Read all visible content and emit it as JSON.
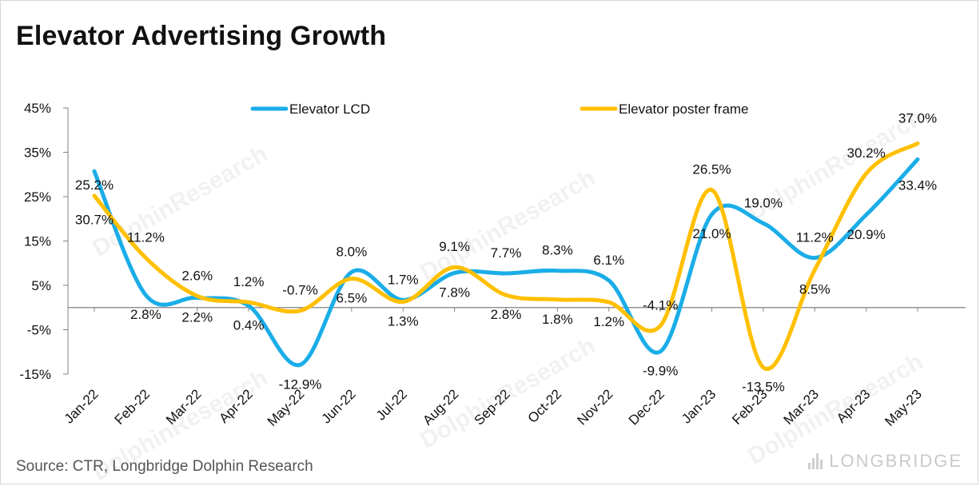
{
  "title": "Elevator Advertising Growth",
  "source": "Source: CTR, Longbridge Dolphin Research",
  "watermark": {
    "text": "DolphinResearch",
    "brand": "LONGBRIDGE"
  },
  "colors": {
    "lcd": "#1AADE8",
    "poster": "#FFC000",
    "axis": "#808080"
  },
  "chart_data": {
    "type": "line",
    "title": "Elevator Advertising Growth",
    "xlabel": "",
    "ylabel": "",
    "categories": [
      "Jan-22",
      "Feb-22",
      "Mar-22",
      "Apr-22",
      "May-22",
      "Jun-22",
      "Jul-22",
      "Aug-22",
      "Sep-22",
      "Oct-22",
      "Nov-22",
      "Dec-22",
      "Jan-23",
      "Feb-23",
      "Mar-23",
      "Apr-23",
      "May-23"
    ],
    "ylim": [
      -15,
      45
    ],
    "yticks": [
      45,
      35,
      25,
      15,
      5,
      -5,
      -15
    ],
    "ytick_labels": [
      "45%",
      "35%",
      "25%",
      "15%",
      "5%",
      "-5%",
      "-15%"
    ],
    "legend": "top",
    "grid": false,
    "series": [
      {
        "name": "Elevator LCD",
        "color": "#1AADE8",
        "values": [
          30.7,
          2.8,
          2.2,
          0.4,
          -12.9,
          8.0,
          1.7,
          7.8,
          7.7,
          8.3,
          6.1,
          -9.9,
          21.0,
          19.0,
          11.2,
          20.9,
          33.4
        ],
        "labels": [
          "30.7%",
          "2.8%",
          "2.2%",
          "0.4%",
          "-12.9%",
          "8.0%",
          "1.7%",
          "7.8%",
          "7.7%",
          "8.3%",
          "6.1%",
          "-9.9%",
          "21.0%",
          "19.0%",
          "11.2%",
          "20.9%",
          "33.4%"
        ]
      },
      {
        "name": "Elevator poster frame",
        "color": "#FFC000",
        "values": [
          25.2,
          11.2,
          2.6,
          1.2,
          -0.7,
          6.5,
          1.3,
          9.1,
          2.8,
          1.8,
          1.2,
          -4.1,
          26.5,
          -13.5,
          8.5,
          30.2,
          37.0
        ],
        "labels": [
          "25.2%",
          "11.2%",
          "2.6%",
          "1.2%",
          "-0.7%",
          "6.5%",
          "1.3%",
          "9.1%",
          "2.8%",
          "1.8%",
          "1.2%",
          "-4.1%",
          "26.5%",
          "-13.5%",
          "8.5%",
          "30.2%",
          "37.0%"
        ]
      }
    ]
  }
}
